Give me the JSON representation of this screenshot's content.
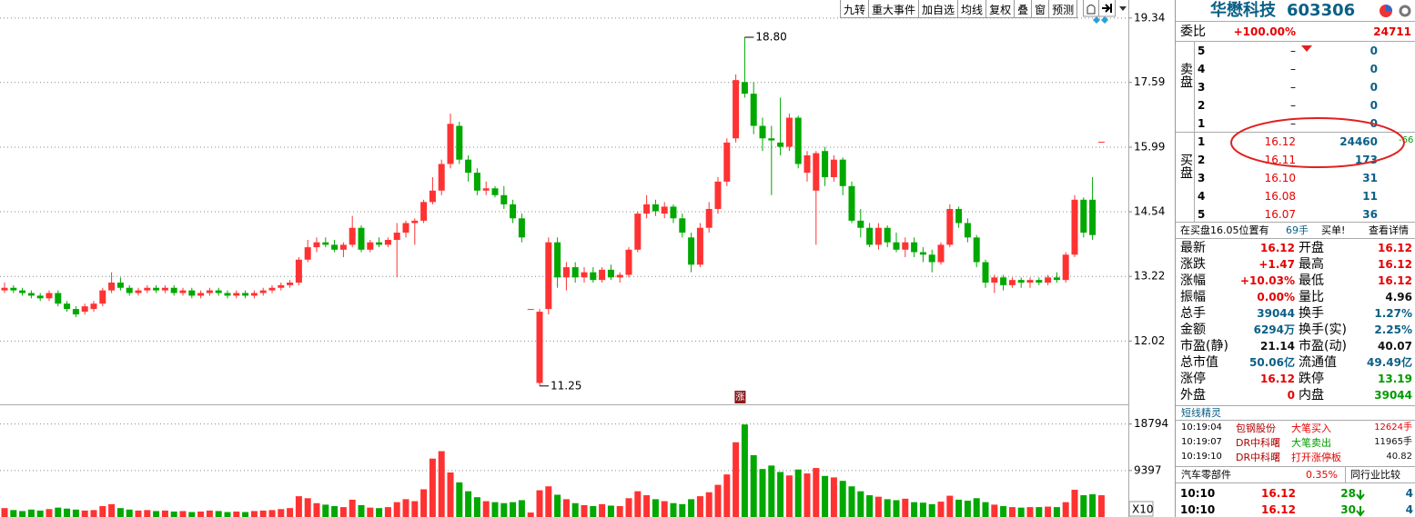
{
  "chart_data": {
    "type": "candlestick",
    "log": true,
    "grid": true,
    "up_color": "#ff3232",
    "down_color": "#00a800",
    "ylim": [
      10.95,
      19.86
    ],
    "yticks": [
      19.34,
      17.59,
      15.99,
      14.54,
      13.22,
      12.02
    ],
    "high_label": "18.80",
    "low_label": "11.25",
    "marker_label": "涨",
    "candles": [
      [
        12.95,
        13.1,
        12.9,
        13.0
      ],
      [
        13.0,
        13.05,
        12.9,
        12.95
      ],
      [
        12.95,
        13.0,
        12.85,
        12.9
      ],
      [
        12.9,
        12.95,
        12.8,
        12.85
      ],
      [
        12.85,
        12.9,
        12.75,
        12.8
      ],
      [
        12.8,
        12.95,
        12.75,
        12.9
      ],
      [
        12.9,
        12.95,
        12.65,
        12.7
      ],
      [
        12.7,
        12.75,
        12.55,
        12.6
      ],
      [
        12.6,
        12.65,
        12.45,
        12.5
      ],
      [
        12.55,
        12.7,
        12.5,
        12.65
      ],
      [
        12.6,
        12.75,
        12.55,
        12.7
      ],
      [
        12.7,
        13.0,
        12.65,
        12.95
      ],
      [
        12.95,
        13.3,
        12.9,
        13.1
      ],
      [
        13.1,
        13.2,
        12.95,
        13.0
      ],
      [
        13.0,
        13.05,
        12.85,
        12.9
      ],
      [
        12.9,
        13.0,
        12.85,
        12.95
      ],
      [
        12.95,
        13.05,
        12.9,
        13.0
      ],
      [
        13.0,
        13.05,
        12.9,
        12.95
      ],
      [
        12.95,
        13.05,
        12.9,
        13.0
      ],
      [
        13.0,
        13.05,
        12.85,
        12.9
      ],
      [
        12.9,
        13.0,
        12.85,
        12.95
      ],
      [
        12.95,
        13.0,
        12.8,
        12.85
      ],
      [
        12.85,
        12.95,
        12.8,
        12.9
      ],
      [
        12.9,
        13.0,
        12.85,
        12.95
      ],
      [
        12.95,
        13.0,
        12.85,
        12.9
      ],
      [
        12.9,
        12.95,
        12.8,
        12.85
      ],
      [
        12.85,
        12.95,
        12.8,
        12.9
      ],
      [
        12.9,
        12.95,
        12.8,
        12.85
      ],
      [
        12.85,
        12.95,
        12.8,
        12.9
      ],
      [
        12.9,
        13.0,
        12.85,
        12.95
      ],
      [
        12.95,
        13.05,
        12.9,
        13.0
      ],
      [
        13.0,
        13.1,
        12.95,
        13.05
      ],
      [
        13.05,
        13.15,
        13.0,
        13.1
      ],
      [
        13.1,
        13.6,
        13.05,
        13.55
      ],
      [
        13.55,
        13.95,
        13.5,
        13.8
      ],
      [
        13.8,
        14.0,
        13.7,
        13.9
      ],
      [
        13.9,
        14.0,
        13.8,
        13.85
      ],
      [
        13.85,
        13.95,
        13.7,
        13.75
      ],
      [
        13.75,
        13.9,
        13.6,
        13.85
      ],
      [
        13.85,
        14.45,
        13.8,
        14.2
      ],
      [
        14.2,
        14.25,
        13.7,
        13.75
      ],
      [
        13.75,
        13.95,
        13.7,
        13.9
      ],
      [
        13.9,
        14.0,
        13.8,
        13.85
      ],
      [
        13.85,
        14.0,
        13.8,
        13.95
      ],
      [
        13.95,
        14.3,
        13.2,
        14.1
      ],
      [
        14.1,
        14.35,
        14.0,
        14.3
      ],
      [
        14.3,
        14.4,
        13.85,
        14.35
      ],
      [
        14.35,
        14.8,
        14.3,
        14.75
      ],
      [
        14.75,
        15.3,
        14.7,
        15.0
      ],
      [
        15.0,
        15.7,
        14.9,
        15.6
      ],
      [
        15.6,
        16.8,
        15.5,
        16.55
      ],
      [
        16.5,
        16.6,
        15.6,
        15.7
      ],
      [
        15.7,
        15.8,
        15.2,
        15.4
      ],
      [
        15.4,
        15.5,
        14.9,
        15.0
      ],
      [
        15.0,
        15.2,
        14.9,
        15.05
      ],
      [
        15.05,
        15.1,
        14.85,
        14.9
      ],
      [
        14.9,
        15.1,
        14.6,
        14.7
      ],
      [
        14.7,
        14.8,
        14.3,
        14.4
      ],
      [
        14.4,
        14.5,
        13.9,
        14.0
      ],
      [
        12.6,
        12.6,
        12.6,
        12.6
      ],
      [
        11.3,
        12.6,
        11.25,
        12.55
      ],
      [
        12.6,
        14.0,
        12.5,
        13.9
      ],
      [
        13.9,
        14.0,
        13.0,
        13.2
      ],
      [
        13.2,
        13.5,
        12.95,
        13.4
      ],
      [
        13.4,
        13.5,
        13.1,
        13.2
      ],
      [
        13.2,
        13.4,
        13.1,
        13.3
      ],
      [
        13.3,
        13.4,
        13.1,
        13.15
      ],
      [
        13.15,
        13.4,
        13.1,
        13.35
      ],
      [
        13.35,
        13.45,
        13.15,
        13.2
      ],
      [
        13.2,
        13.3,
        13.1,
        13.25
      ],
      [
        13.25,
        13.8,
        13.2,
        13.75
      ],
      [
        13.75,
        14.55,
        13.7,
        14.5
      ],
      [
        14.5,
        14.9,
        14.4,
        14.7
      ],
      [
        14.7,
        14.8,
        14.45,
        14.55
      ],
      [
        14.5,
        14.75,
        14.4,
        14.65
      ],
      [
        14.65,
        14.7,
        14.3,
        14.4
      ],
      [
        14.4,
        14.5,
        14.0,
        14.1
      ],
      [
        14.0,
        14.1,
        13.3,
        13.45
      ],
      [
        13.45,
        14.3,
        13.4,
        14.2
      ],
      [
        14.2,
        14.75,
        14.1,
        14.6
      ],
      [
        14.6,
        15.3,
        14.5,
        15.2
      ],
      [
        15.2,
        16.2,
        15.1,
        16.1
      ],
      [
        16.2,
        17.8,
        16.1,
        17.65
      ],
      [
        17.6,
        18.8,
        17.2,
        17.3
      ],
      [
        17.3,
        17.6,
        16.3,
        16.5
      ],
      [
        16.5,
        16.7,
        15.9,
        16.2
      ],
      [
        16.2,
        16.5,
        14.9,
        16.15
      ],
      [
        16.1,
        17.2,
        15.8,
        16.0
      ],
      [
        16.0,
        16.8,
        15.9,
        16.7
      ],
      [
        16.7,
        16.75,
        15.5,
        15.6
      ],
      [
        15.4,
        15.9,
        15.2,
        15.8
      ],
      [
        15.0,
        15.9,
        13.85,
        15.85
      ],
      [
        15.9,
        16.0,
        15.1,
        15.3
      ],
      [
        15.3,
        15.8,
        15.2,
        15.7
      ],
      [
        15.7,
        15.75,
        14.9,
        15.1
      ],
      [
        15.1,
        15.2,
        14.3,
        14.35
      ],
      [
        14.35,
        14.6,
        14.0,
        14.2
      ],
      [
        14.2,
        14.3,
        13.8,
        13.85
      ],
      [
        13.85,
        14.3,
        13.75,
        14.2
      ],
      [
        14.2,
        14.25,
        13.8,
        13.9
      ],
      [
        13.9,
        14.1,
        13.7,
        13.75
      ],
      [
        13.75,
        14.0,
        13.6,
        13.9
      ],
      [
        13.9,
        14.0,
        13.6,
        13.7
      ],
      [
        13.7,
        13.8,
        13.5,
        13.65
      ],
      [
        13.65,
        13.75,
        13.3,
        13.5
      ],
      [
        13.5,
        13.9,
        13.45,
        13.85
      ],
      [
        13.85,
        14.7,
        13.8,
        14.6
      ],
      [
        14.6,
        14.65,
        14.2,
        14.3
      ],
      [
        14.3,
        14.4,
        13.9,
        14.0
      ],
      [
        14.0,
        14.05,
        13.4,
        13.5
      ],
      [
        13.5,
        13.55,
        13.0,
        13.1
      ],
      [
        13.1,
        13.25,
        12.9,
        13.2
      ],
      [
        13.2,
        13.25,
        12.95,
        13.05
      ],
      [
        13.05,
        13.2,
        13.0,
        13.15
      ],
      [
        13.15,
        13.2,
        13.0,
        13.1
      ],
      [
        13.1,
        13.2,
        13.0,
        13.15
      ],
      [
        13.15,
        13.2,
        13.05,
        13.1
      ],
      [
        13.1,
        13.25,
        13.05,
        13.2
      ],
      [
        13.2,
        13.3,
        13.1,
        13.15
      ],
      [
        13.15,
        13.7,
        13.1,
        13.65
      ],
      [
        13.65,
        14.9,
        13.6,
        14.8
      ],
      [
        14.8,
        14.85,
        14.0,
        14.1
      ],
      [
        14.8,
        15.3,
        13.95,
        14.05
      ],
      [
        16.12,
        16.12,
        16.12,
        16.12
      ]
    ],
    "volume": [
      1800,
      1400,
      1200,
      1500,
      1300,
      1600,
      1900,
      1700,
      1500,
      1300,
      1400,
      2200,
      2600,
      1800,
      1500,
      1300,
      1400,
      1200,
      1300,
      1100,
      1200,
      1000,
      1100,
      1300,
      1200,
      1000,
      1100,
      1000,
      1200,
      1300,
      1400,
      1600,
      1800,
      4200,
      3800,
      2800,
      2500,
      2200,
      2000,
      3500,
      2400,
      1900,
      1800,
      2000,
      3000,
      3600,
      3200,
      5600,
      11800,
      13300,
      9000,
      7000,
      5200,
      4000,
      3200,
      3000,
      2800,
      3000,
      3400,
      900,
      5400,
      6200,
      4500,
      3600,
      2800,
      2400,
      2200,
      2600,
      2300,
      2200,
      3800,
      5200,
      4400,
      3600,
      3200,
      2800,
      2600,
      3600,
      4200,
      5000,
      6500,
      8600,
      15100,
      18700,
      12500,
      9700,
      10400,
      9100,
      8400,
      9600,
      8800,
      9900,
      8300,
      8000,
      7300,
      6200,
      5200,
      4400,
      4100,
      3600,
      3400,
      3700,
      3000,
      2900,
      2600,
      3100,
      4300,
      3500,
      3300,
      3800,
      3000,
      2500,
      2200,
      2000,
      1900,
      2000,
      2000,
      2100,
      2000,
      3000,
      5500,
      4400,
      4600,
      4400
    ],
    "volume_ylim": [
      0,
      22400
    ],
    "volume_yticks": [
      18794,
      9397
    ],
    "volume_unit_label": "X10"
  },
  "toolbar": [
    "九转",
    "重大事件",
    "加自选",
    "均线",
    "复权",
    "叠",
    "窗",
    "预测"
  ],
  "header": {
    "name": "华懋科技",
    "code": "603306"
  },
  "order_book": {
    "ratio_label": "委比",
    "ratio": "+100.00%",
    "ratio_diff": "24711",
    "sell_label": "卖盘",
    "buy_label": "买盘",
    "sell": [
      [
        "5",
        "–",
        "0"
      ],
      [
        "4",
        "–",
        "0"
      ],
      [
        "3",
        "–",
        "0"
      ],
      [
        "2",
        "–",
        "0"
      ],
      [
        "1",
        "–",
        "0"
      ]
    ],
    "buy": [
      [
        "1",
        "16.12",
        "24460",
        "-66"
      ],
      [
        "2",
        "16.11",
        "173"
      ],
      [
        "3",
        "16.10",
        "31"
      ],
      [
        "4",
        "16.08",
        "11"
      ],
      [
        "5",
        "16.07",
        "36"
      ]
    ]
  },
  "alert": {
    "text": "在买盘16.05位置有",
    "amount": "69手",
    "suffix": "买单!",
    "link": "查看详情"
  },
  "stats": [
    [
      "最新",
      "16.12",
      "开盘",
      "16.12"
    ],
    [
      "涨跌",
      "+1.47",
      "最高",
      "16.12"
    ],
    [
      "涨幅",
      "+10.03%",
      "最低",
      "16.12"
    ],
    [
      "振幅",
      "0.00%",
      "量比",
      "4.96"
    ],
    [
      "总手",
      "39044",
      "换手",
      "1.27%"
    ],
    [
      "金额",
      "6294万",
      "换手(实)",
      "2.25%"
    ],
    [
      "市盈(静)",
      "21.14",
      "市盈(动)",
      "40.07"
    ],
    [
      "总市值",
      "50.06亿",
      "流通值",
      "49.49亿"
    ],
    [
      "涨停",
      "16.12",
      "跌停",
      "13.19"
    ],
    [
      "外盘",
      "0",
      "内盘",
      "39044"
    ]
  ],
  "sprite": {
    "title": "短线精灵",
    "rows": [
      [
        "10:19:04",
        "包钢股份",
        "大笔买入",
        "12624手"
      ],
      [
        "10:19:07",
        "DR中科曙",
        "大笔卖出",
        "11965手"
      ],
      [
        "10:19:10",
        "DR中科曙",
        "打开涨停板",
        "40.82"
      ]
    ]
  },
  "sector": {
    "name": "汽车零部件",
    "change": "0.35%",
    "link": "同行业比较"
  },
  "trades": [
    [
      "10:10",
      "16.12",
      "28",
      "4"
    ],
    [
      "10:10",
      "16.12",
      "30",
      "4"
    ]
  ]
}
